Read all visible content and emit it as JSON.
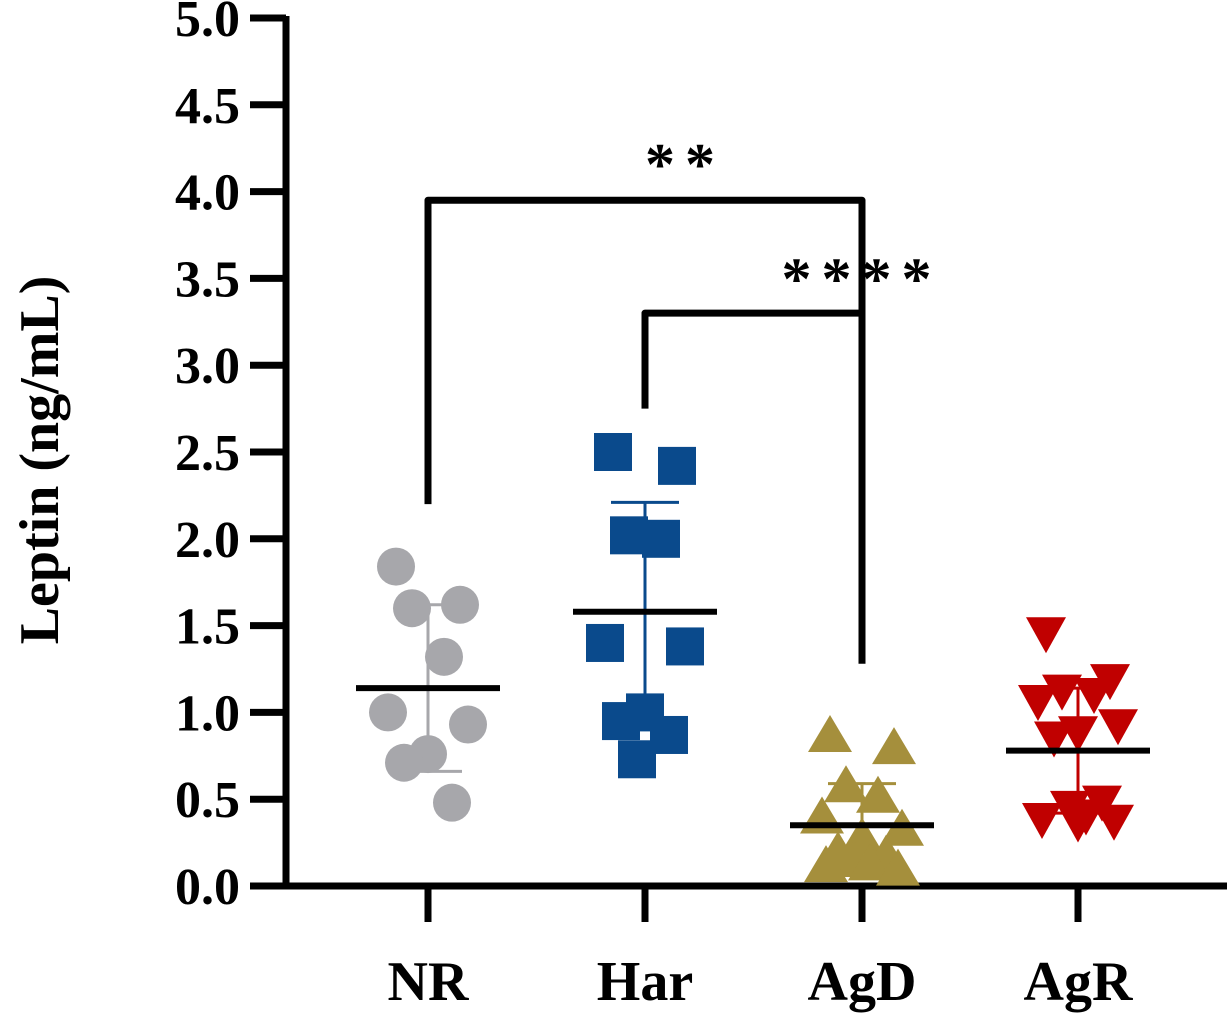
{
  "chart_data": {
    "type": "scatter",
    "ylabel": "Leptin (ng/mL)",
    "xlabel": "",
    "title": "",
    "ylim": [
      0,
      5
    ],
    "yticks": [
      "0.0",
      "0.5",
      "1.0",
      "1.5",
      "2.0",
      "2.5",
      "3.0",
      "3.5",
      "4.0",
      "4.5",
      "5.0"
    ],
    "categories": [
      "NR",
      "Har",
      "AgD",
      "AgR"
    ],
    "groups": [
      {
        "name": "NR",
        "color": "#a7a7ab",
        "marker": "circle",
        "points": [
          1.84,
          1.62,
          1.6,
          1.32,
          1.0,
          0.93,
          0.76,
          0.71,
          0.48
        ],
        "mean": 1.14,
        "sd": 0.48
      },
      {
        "name": "Har",
        "color": "#0a4a8c",
        "marker": "square",
        "points": [
          2.5,
          2.42,
          2.02,
          2.0,
          1.4,
          1.38,
          1.0,
          0.95,
          0.87,
          0.73
        ],
        "mean": 1.58,
        "sd": 0.63
      },
      {
        "name": "AgD",
        "color": "#a58f3c",
        "marker": "triangle-up",
        "points": [
          0.87,
          0.8,
          0.58,
          0.52,
          0.4,
          0.33,
          0.28,
          0.2,
          0.18,
          0.15,
          0.13,
          0.12,
          0.1
        ],
        "mean": 0.35,
        "sd": 0.24
      },
      {
        "name": "AgR",
        "color": "#c00000",
        "marker": "triangle-down",
        "points": [
          1.45,
          1.18,
          1.12,
          1.1,
          1.06,
          0.92,
          0.88,
          0.85,
          0.48,
          0.45,
          0.4,
          0.38,
          0.37,
          0.36
        ],
        "mean": 0.78,
        "sd": 0.36
      }
    ],
    "significance": [
      {
        "from": "NR",
        "to": "AgD",
        "label": "**",
        "from_y": 2.2,
        "to_y": 1.28,
        "level": 3.95
      },
      {
        "from": "Har",
        "to": "AgD",
        "label": "****",
        "from_y": 2.75,
        "to_y": 3.3,
        "level": 3.3
      }
    ]
  }
}
